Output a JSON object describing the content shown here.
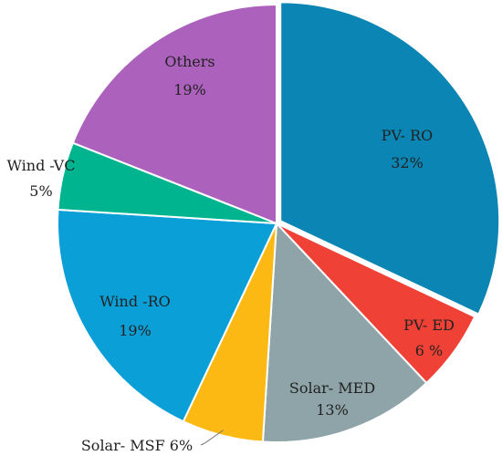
{
  "chart_data": {
    "type": "pie",
    "slices": [
      {
        "name": "PV- RO",
        "value": 32,
        "value_label": "32%",
        "color": "#0a85b4",
        "exploded": true
      },
      {
        "name": "PV- ED",
        "value": 6,
        "value_label": "6 %",
        "color": "#ef4136"
      },
      {
        "name": "Solar- MED",
        "value": 13,
        "value_label": "13%",
        "color": "#8fa4a9"
      },
      {
        "name": "Solar- MSF",
        "value": 6,
        "value_label": "6%",
        "color": "#fdb913"
      },
      {
        "name": "Wind -RO",
        "value": 19,
        "value_label": "19%",
        "color": "#0b9fd8"
      },
      {
        "name": "Wind -VC",
        "value": 5,
        "value_label": "5%",
        "color": "#00b48f"
      },
      {
        "name": "Others",
        "value": 19,
        "value_label": "19%",
        "color": "#ac62bd"
      }
    ]
  }
}
